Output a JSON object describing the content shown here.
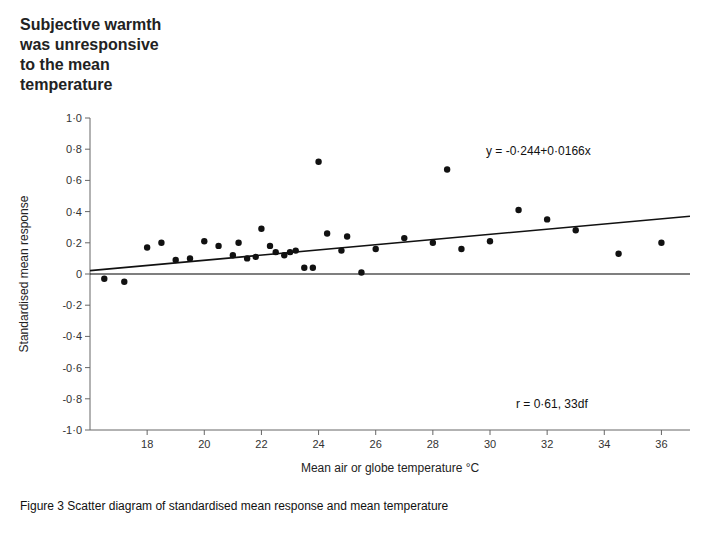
{
  "chart_data": {
    "type": "scatter",
    "title": "Subjective warmth\nwas unresponsive\nto the mean\ntemperature",
    "xlabel": "Mean air or globe temperature °C",
    "ylabel": "Standardised mean response",
    "annotations": [
      "y = -0·244+0·0166x",
      "r = 0·61, 33df",
      "Figure 3   Scatter diagram of standardised mean response and mean temperature"
    ],
    "series": [
      {
        "type": "scatter",
        "color": "#111111",
        "x": [
          16.5,
          17.2,
          18.0,
          18.5,
          19.0,
          19.5,
          20.0,
          20.5,
          21.0,
          21.2,
          21.5,
          21.8,
          22.0,
          22.3,
          22.5,
          22.8,
          23.0,
          23.2,
          23.5,
          23.8,
          24.0,
          24.3,
          24.8,
          25.0,
          25.5,
          26.0,
          27.0,
          28.0,
          28.5,
          29.0,
          30.0,
          31.0,
          32.0,
          33.0,
          34.5,
          36.0
        ],
        "values": [
          -0.03,
          -0.05,
          0.17,
          0.2,
          0.09,
          0.1,
          0.21,
          0.18,
          0.12,
          0.2,
          0.1,
          0.11,
          0.29,
          0.18,
          0.14,
          0.12,
          0.14,
          0.15,
          0.04,
          0.04,
          0.72,
          0.26,
          0.15,
          0.24,
          0.01,
          0.16,
          0.23,
          0.2,
          0.67,
          0.16,
          0.21,
          0.41,
          0.35,
          0.28,
          0.13,
          0.2
        ]
      },
      {
        "type": "line",
        "color": "#111111",
        "x": [
          16,
          37
        ],
        "values": [
          0.0216,
          0.3702
        ]
      }
    ],
    "xlim": [
      16,
      37
    ],
    "ylim": [
      -1.0,
      1.0
    ],
    "xticks": [
      18,
      20,
      22,
      24,
      26,
      28,
      30,
      32,
      34,
      36
    ],
    "yticks": [
      {
        "value": -1.0,
        "label": "-1·0"
      },
      {
        "value": -0.8,
        "label": "-0·8"
      },
      {
        "value": -0.6,
        "label": "-0·6"
      },
      {
        "value": -0.4,
        "label": "-0·4"
      },
      {
        "value": -0.2,
        "label": "-0·2"
      },
      0,
      {
        "value": 0.2,
        "label": "0·2"
      },
      {
        "value": 0.4,
        "label": "0·4"
      },
      {
        "value": 0.6,
        "label": "0·6"
      },
      {
        "value": 0.8,
        "label": "0·8"
      },
      {
        "value": 1.0,
        "label": "1·0"
      }
    ],
    "grid": false
  }
}
